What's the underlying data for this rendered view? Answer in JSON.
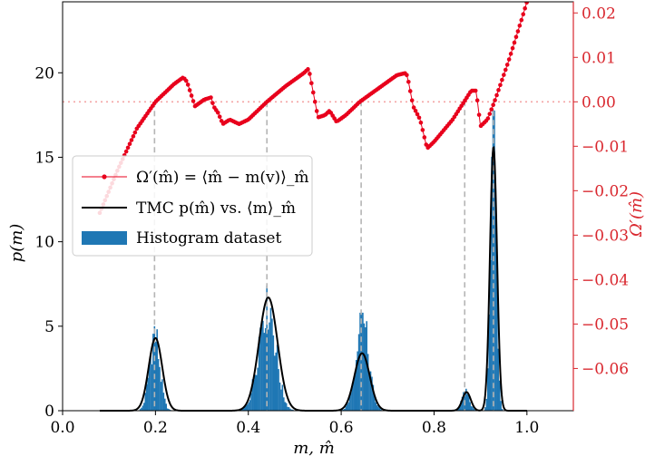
{
  "chart_data": {
    "type": "bar",
    "xlabel": "m, m̂",
    "ylabel_left": "p(m)",
    "ylabel_right": "Ω′(m̂)",
    "xlim": [
      0.0,
      1.1
    ],
    "ylim_left": [
      0,
      24.2
    ],
    "ylim_right": [
      -0.0695,
      0.0225
    ],
    "x_ticks": [
      0.0,
      0.2,
      0.4,
      0.6,
      0.8,
      1.0
    ],
    "x_tick_labels": [
      "0.0",
      "0.2",
      "0.4",
      "0.6",
      "0.8",
      "1.0"
    ],
    "left_ticks": [
      0,
      5,
      10,
      15,
      20
    ],
    "left_tick_labels": [
      "0",
      "5",
      "10",
      "15",
      "20"
    ],
    "right_ticks": [
      0.02,
      0.01,
      0.0,
      -0.01,
      -0.02,
      -0.03,
      -0.04,
      -0.05,
      -0.06
    ],
    "right_tick_labels": [
      "0.02",
      "0.01",
      "0.00",
      "−0.01",
      "−0.02",
      "−0.03",
      "−0.04",
      "−0.05",
      "−0.06"
    ],
    "legend": {
      "location": "center-left",
      "entries": [
        {
          "label": "Ω′(m̂) = ⟨m̂ − m(v)⟩_m̂",
          "style": "red-line-dots"
        },
        {
          "label": "TMC p(m̂) vs. ⟨m⟩_m̂",
          "style": "black-line"
        },
        {
          "label": "Histogram dataset",
          "style": "blue-patch"
        }
      ]
    },
    "histogram_peaks": [
      {
        "center": 0.198,
        "width": 0.011,
        "height": 5.0
      },
      {
        "center": 0.44,
        "width": 0.018,
        "height": 7.4
      },
      {
        "center": 0.645,
        "width": 0.014,
        "height": 5.8
      },
      {
        "center": 0.868,
        "width": 0.008,
        "height": 1.3
      },
      {
        "center": 0.928,
        "width": 0.006,
        "height": 17.8
      }
    ],
    "series": [
      {
        "name": "TMC p(m̂) vs. ⟨m⟩_m̂",
        "peaks": [
          {
            "center": 0.2,
            "width": 0.0145,
            "height": 4.3
          },
          {
            "center": 0.443,
            "width": 0.02,
            "height": 6.7
          },
          {
            "center": 0.645,
            "width": 0.0165,
            "height": 3.4
          },
          {
            "center": 0.87,
            "width": 0.009,
            "height": 1.1
          },
          {
            "center": 0.928,
            "width": 0.0075,
            "height": 15.6
          }
        ]
      },
      {
        "name": "Ω′(m̂) = ⟨m̂ − m(v)⟩_m̂",
        "x": [
          0.08,
          0.12,
          0.16,
          0.2,
          0.24,
          0.26,
          0.268,
          0.285,
          0.305,
          0.32,
          0.325,
          0.335,
          0.345,
          0.36,
          0.38,
          0.4,
          0.44,
          0.48,
          0.52,
          0.53,
          0.55,
          0.565,
          0.575,
          0.59,
          0.61,
          0.64,
          0.68,
          0.72,
          0.74,
          0.745,
          0.755,
          0.77,
          0.785,
          0.8,
          0.84,
          0.88,
          0.89,
          0.893,
          0.9,
          0.915,
          0.93,
          0.96,
          0.99,
          1.0
        ],
        "y": [
          -0.025,
          -0.015,
          -0.006,
          0.0,
          0.004,
          0.0055,
          0.0045,
          -0.001,
          0.0005,
          0.001,
          -0.001,
          -0.0025,
          -0.005,
          -0.004,
          -0.005,
          -0.004,
          0.0,
          0.0035,
          0.0065,
          0.0075,
          -0.0035,
          -0.003,
          -0.002,
          -0.0045,
          -0.003,
          0.0,
          0.003,
          0.006,
          0.0065,
          0.0045,
          -0.001,
          -0.004,
          -0.0105,
          -0.009,
          -0.004,
          0.0025,
          0.0025,
          0.0005,
          -0.0055,
          -0.004,
          0.0,
          0.009,
          0.019,
          0.0225
        ]
      }
    ],
    "reference_lines": {
      "horizontal_dotted_right_axis_value": 0.0,
      "vertical_dashed_x": [
        0.198,
        0.44,
        0.643,
        0.866,
        0.928
      ]
    },
    "colors": {
      "histogram": "#1f77b4",
      "tmc_line": "#000000",
      "omega_series": "#e8001c",
      "right_axis": "#d9272e",
      "reference_dotted": "#f4a6a6",
      "vertical_dashed": "#b5b5b5"
    }
  }
}
